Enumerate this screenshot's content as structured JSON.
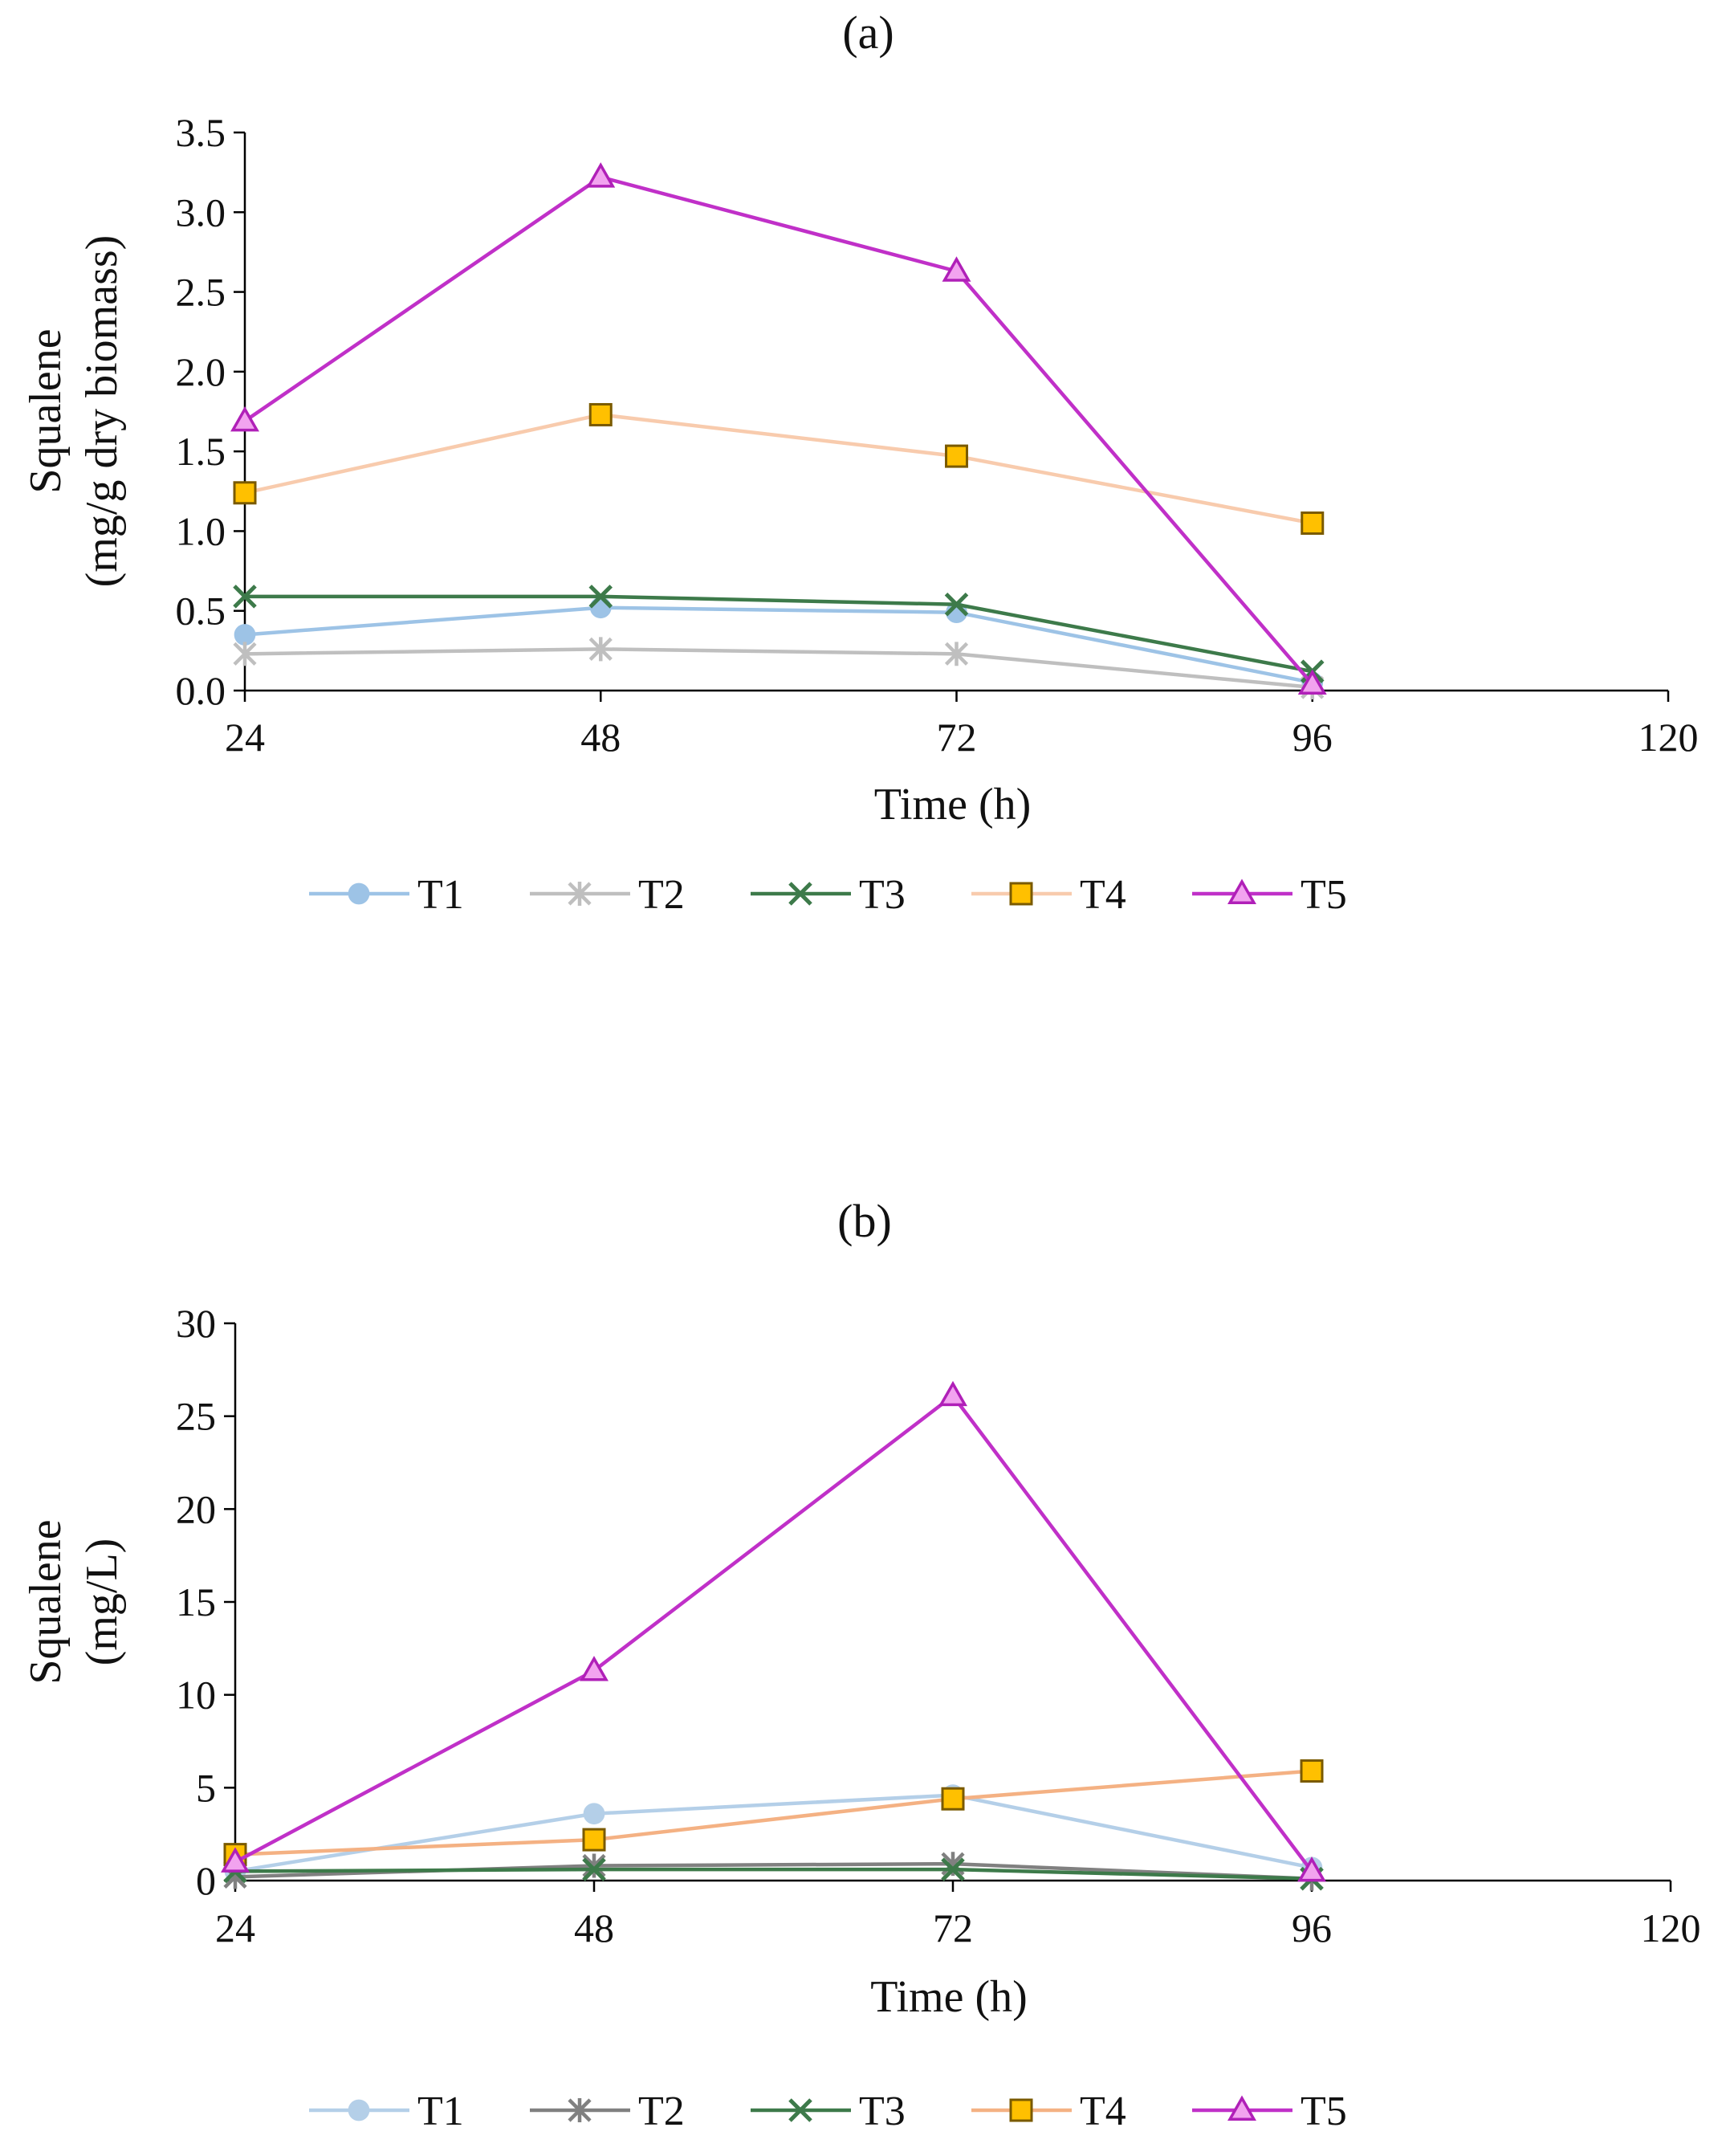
{
  "chart_data": [
    {
      "type": "line",
      "title": "(a)",
      "xlabel": "Time (h)",
      "ylabel": [
        "Squalene",
        "(mg/g dry biomass)"
      ],
      "x_ticks": [
        "24",
        "48",
        "72",
        "96",
        "120"
      ],
      "y_ticks": [
        "0.0",
        "0.5",
        "1.0",
        "1.5",
        "2.0",
        "2.5",
        "3.0",
        "3.5"
      ],
      "xlim": [
        24,
        120
      ],
      "ylim": [
        0,
        3.5
      ],
      "grid": false,
      "legend_position": "bottom",
      "series": [
        {
          "name": "T1",
          "marker": "circle",
          "color": "#9dc3e6",
          "x": [
            24,
            48,
            72,
            96
          ],
          "values": [
            0.35,
            0.52,
            0.49,
            0.05
          ]
        },
        {
          "name": "T2",
          "marker": "asterisk",
          "color": "#bfbfbf",
          "x": [
            24,
            48,
            72,
            96
          ],
          "values": [
            0.23,
            0.26,
            0.23,
            0.02
          ]
        },
        {
          "name": "T3",
          "marker": "x",
          "color": "#3d7a4a",
          "x": [
            24,
            48,
            72,
            96
          ],
          "values": [
            0.59,
            0.59,
            0.54,
            0.12
          ]
        },
        {
          "name": "T4",
          "marker": "square",
          "color": "#f8cbad",
          "x": [
            24,
            48,
            72,
            96
          ],
          "values": [
            1.24,
            1.73,
            1.47,
            1.05
          ]
        },
        {
          "name": "T5",
          "marker": "triangle",
          "color": "#c030c8",
          "x": [
            24,
            48,
            72,
            96
          ],
          "values": [
            1.69,
            3.22,
            2.63,
            0.04
          ]
        }
      ]
    },
    {
      "type": "line",
      "title": "(b)",
      "xlabel": "Time (h)",
      "ylabel": [
        "Squalene",
        "(mg/L)"
      ],
      "x_ticks": [
        "24",
        "48",
        "72",
        "96",
        "120"
      ],
      "y_ticks": [
        "0",
        "5",
        "10",
        "15",
        "20",
        "25",
        "30"
      ],
      "xlim": [
        24,
        120
      ],
      "ylim": [
        0,
        30
      ],
      "grid": false,
      "legend_position": "bottom",
      "series": [
        {
          "name": "T1",
          "marker": "circle",
          "color": "#b4cfe8",
          "x": [
            24,
            48,
            72,
            96
          ],
          "values": [
            0.5,
            3.6,
            4.6,
            0.7
          ]
        },
        {
          "name": "T2",
          "marker": "asterisk",
          "color": "#808080",
          "x": [
            24,
            48,
            72,
            96
          ],
          "values": [
            0.2,
            0.8,
            0.9,
            0.1
          ]
        },
        {
          "name": "T3",
          "marker": "x",
          "color": "#3d7a4a",
          "x": [
            24,
            48,
            72,
            96
          ],
          "values": [
            0.5,
            0.6,
            0.6,
            0.1
          ]
        },
        {
          "name": "T4",
          "marker": "square",
          "color": "#f4b183",
          "x": [
            24,
            48,
            72,
            96
          ],
          "values": [
            1.4,
            2.2,
            4.4,
            5.9
          ]
        },
        {
          "name": "T5",
          "marker": "triangle",
          "color": "#c030c8",
          "x": [
            24,
            48,
            72,
            96
          ],
          "values": [
            1.0,
            11.3,
            26.1,
            0.5
          ]
        }
      ]
    }
  ]
}
